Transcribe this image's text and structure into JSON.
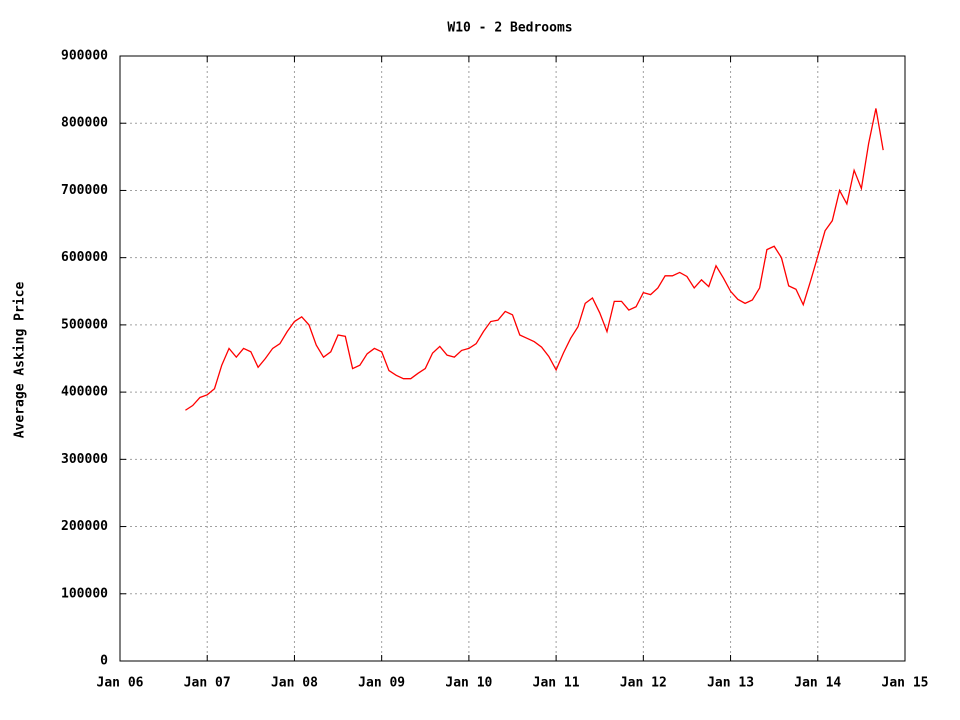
{
  "chart_data": {
    "type": "line",
    "title": "W10 - 2 Bedrooms",
    "y_label": "Average Asking Price",
    "x": [
      "2006-10",
      "2006-11",
      "2006-12",
      "2007-01",
      "2007-02",
      "2007-03",
      "2007-04",
      "2007-05",
      "2007-06",
      "2007-07",
      "2007-08",
      "2007-09",
      "2007-10",
      "2007-11",
      "2007-12",
      "2008-01",
      "2008-02",
      "2008-03",
      "2008-04",
      "2008-05",
      "2008-06",
      "2008-07",
      "2008-08",
      "2008-09",
      "2008-10",
      "2008-11",
      "2008-12",
      "2009-01",
      "2009-02",
      "2009-03",
      "2009-04",
      "2009-05",
      "2009-06",
      "2009-07",
      "2009-08",
      "2009-09",
      "2009-10",
      "2009-11",
      "2009-12",
      "2010-01",
      "2010-02",
      "2010-03",
      "2010-04",
      "2010-05",
      "2010-06",
      "2010-07",
      "2010-08",
      "2010-09",
      "2010-10",
      "2010-11",
      "2010-12",
      "2011-01",
      "2011-02",
      "2011-03",
      "2011-04",
      "2011-05",
      "2011-06",
      "2011-07",
      "2011-08",
      "2011-09",
      "2011-10",
      "2011-11",
      "2011-12",
      "2012-01",
      "2012-02",
      "2012-03",
      "2012-04",
      "2012-05",
      "2012-06",
      "2012-07",
      "2012-08",
      "2012-09",
      "2012-10",
      "2012-11",
      "2012-12",
      "2013-01",
      "2013-02",
      "2013-03",
      "2013-04",
      "2013-05",
      "2013-06",
      "2013-07",
      "2013-08",
      "2013-09",
      "2013-10",
      "2013-11",
      "2013-12",
      "2014-01",
      "2014-02",
      "2014-03",
      "2014-04",
      "2014-05",
      "2014-06",
      "2014-07",
      "2014-08",
      "2014-09",
      "2014-10"
    ],
    "series": [
      {
        "color": "#ff0000",
        "values": [
          373000,
          380000,
          392000,
          396000,
          405000,
          440000,
          465000,
          452000,
          465000,
          460000,
          437000,
          450000,
          465000,
          472000,
          490000,
          505000,
          512000,
          500000,
          470000,
          452000,
          460000,
          485000,
          483000,
          435000,
          440000,
          457000,
          465000,
          460000,
          432000,
          425000,
          420000,
          420000,
          428000,
          435000,
          458000,
          468000,
          455000,
          452000,
          462000,
          465000,
          472000,
          490000,
          505000,
          507000,
          520000,
          515000,
          485000,
          480000,
          475000,
          467000,
          453000,
          433000,
          458000,
          480000,
          497000,
          532000,
          540000,
          518000,
          490000,
          535000,
          535000,
          522000,
          527000,
          548000,
          545000,
          555000,
          573000,
          573000,
          578000,
          572000,
          555000,
          567000,
          557000,
          588000,
          570000,
          550000,
          538000,
          532000,
          537000,
          555000,
          612000,
          617000,
          600000,
          558000,
          553000,
          530000,
          565000,
          602000,
          640000,
          655000,
          700000,
          680000,
          730000,
          703000,
          770000,
          822000,
          760000
        ]
      }
    ],
    "xlim": [
      "2006-01",
      "2015-01"
    ],
    "xticks": [
      {
        "value": "2006-01",
        "label": "Jan 06"
      },
      {
        "value": "2007-01",
        "label": "Jan 07"
      },
      {
        "value": "2008-01",
        "label": "Jan 08"
      },
      {
        "value": "2009-01",
        "label": "Jan 09"
      },
      {
        "value": "2010-01",
        "label": "Jan 10"
      },
      {
        "value": "2011-01",
        "label": "Jan 11"
      },
      {
        "value": "2012-01",
        "label": "Jan 12"
      },
      {
        "value": "2013-01",
        "label": "Jan 13"
      },
      {
        "value": "2014-01",
        "label": "Jan 14"
      },
      {
        "value": "2015-01",
        "label": "Jan 15"
      }
    ],
    "ylim": [
      0,
      900000
    ],
    "yticks": [
      0,
      100000,
      200000,
      300000,
      400000,
      500000,
      600000,
      700000,
      800000,
      900000
    ],
    "grid": true
  }
}
